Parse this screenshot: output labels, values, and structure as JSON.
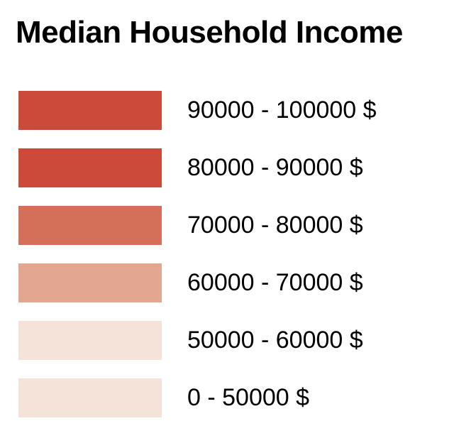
{
  "legend": {
    "title": "Median Household Income",
    "items": [
      {
        "label": "90000 - 100000 $",
        "color": "#CB4A3A"
      },
      {
        "label": "80000 - 90000 $",
        "color": "#CB4A3A"
      },
      {
        "label": "70000 - 80000 $",
        "color": "#D4705A"
      },
      {
        "label": "60000 - 70000 $",
        "color": "#E3A690"
      },
      {
        "label": "50000 - 60000 $",
        "color": "#F5E2D9"
      },
      {
        "label": "0 - 50000 $",
        "color": "#F5E2D9"
      }
    ]
  }
}
